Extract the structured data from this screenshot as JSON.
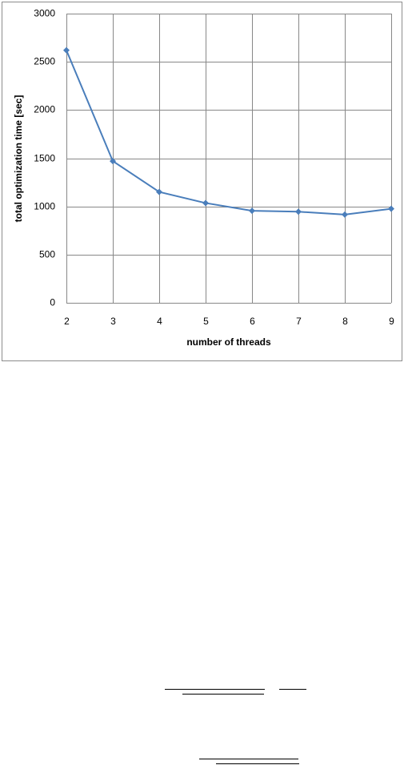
{
  "chart_data": {
    "type": "line",
    "xlabel": "number of threads",
    "ylabel": "total optimization time [sec]",
    "x": [
      2,
      3,
      4,
      5,
      6,
      7,
      8,
      9
    ],
    "series": [
      {
        "color": "#4a7ebb",
        "values": [
          2620,
          1470,
          1150,
          1035,
          955,
          945,
          915,
          975
        ]
      }
    ],
    "xlim": [
      2,
      9
    ],
    "xticks": [
      2,
      3,
      4,
      5,
      6,
      7,
      8,
      9
    ],
    "ylim": [
      0,
      3000
    ],
    "yticks": [
      0,
      500,
      1000,
      1500,
      2000,
      2500,
      3000
    ],
    "grid": true
  }
}
